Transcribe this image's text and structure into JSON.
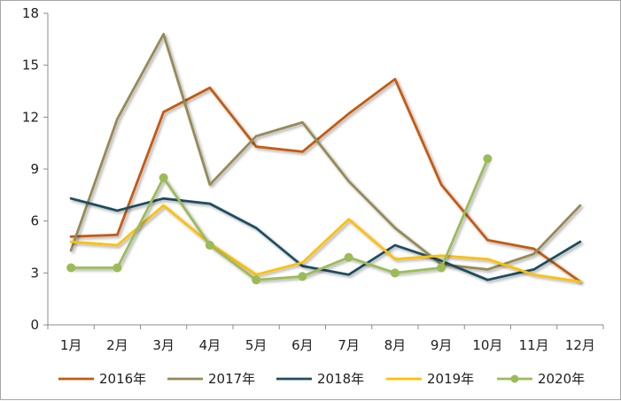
{
  "chart_data": {
    "type": "line",
    "title": "",
    "xlabel": "",
    "ylabel": "",
    "categories": [
      "1月",
      "2月",
      "3月",
      "4月",
      "5月",
      "6月",
      "7月",
      "8月",
      "9月",
      "10月",
      "11月",
      "12月"
    ],
    "ylim": [
      0,
      18
    ],
    "yticks": [
      0,
      3,
      6,
      9,
      12,
      15,
      18
    ],
    "grid": false,
    "legend": "bottom",
    "series": [
      {
        "name": "2016年",
        "color": "#c55a11",
        "marker": false,
        "values": [
          5.1,
          5.2,
          12.3,
          13.7,
          10.3,
          10.0,
          12.2,
          14.2,
          8.1,
          4.9,
          4.4,
          2.5
        ]
      },
      {
        "name": "2017年",
        "color": "#948a54",
        "marker": false,
        "values": [
          4.3,
          11.9,
          16.8,
          8.1,
          10.9,
          11.7,
          8.3,
          5.6,
          3.5,
          3.2,
          4.1,
          6.9
        ]
      },
      {
        "name": "2018年",
        "color": "#1f4e5f",
        "marker": false,
        "values": [
          7.3,
          6.6,
          7.3,
          7.0,
          5.6,
          3.4,
          2.9,
          4.6,
          3.7,
          2.6,
          3.2,
          4.8
        ]
      },
      {
        "name": "2019年",
        "color": "#ffc000",
        "marker": false,
        "values": [
          4.8,
          4.6,
          6.9,
          4.7,
          2.9,
          3.6,
          6.1,
          3.8,
          4.0,
          3.8,
          2.9,
          2.5
        ]
      },
      {
        "name": "2020年",
        "color": "#9bbb59",
        "marker": true,
        "values": [
          3.3,
          3.3,
          8.5,
          4.6,
          2.6,
          2.8,
          3.9,
          3.0,
          3.3,
          9.6,
          null,
          null
        ]
      }
    ]
  }
}
